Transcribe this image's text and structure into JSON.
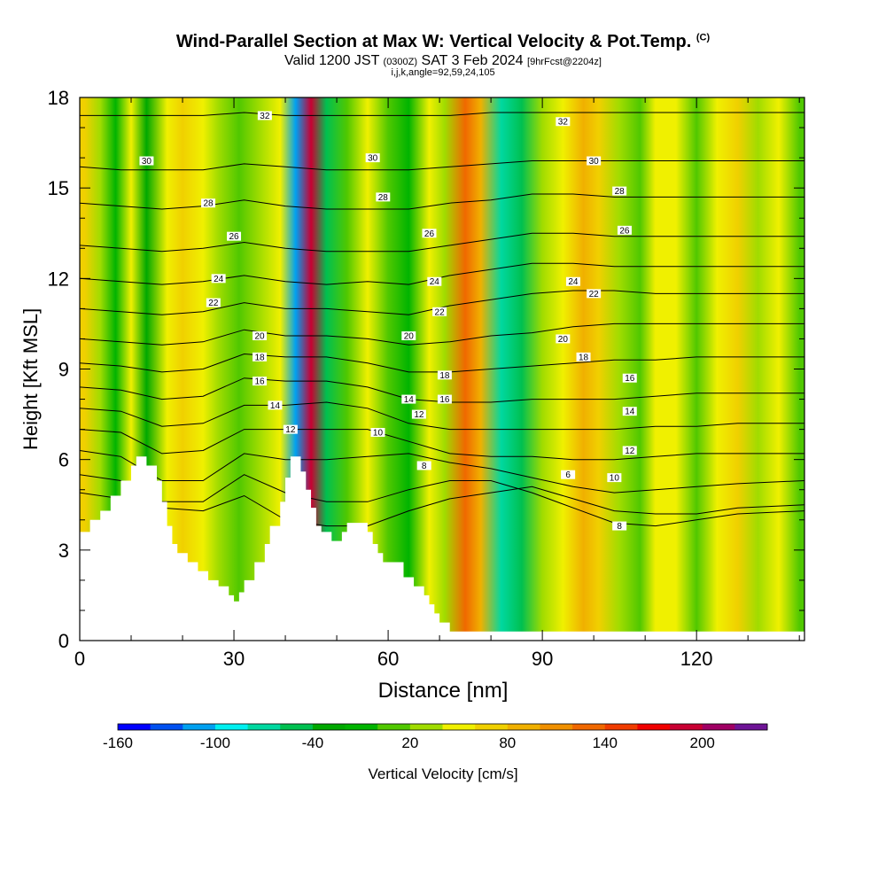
{
  "chart_data": {
    "type": "heatmap",
    "title": "Wind-Parallel Section at Max W: Vertical Velocity & Pot.Temp.",
    "title_mark": "(C)",
    "subtitle_main": "Valid 1200 JST",
    "subtitle_utc": "(0300Z)",
    "subtitle_date": "SAT 3 Feb 2024",
    "subtitle_fcst": "[9hrFcst@2204z]",
    "params": "i,j,k,angle=92,59,24,105",
    "xlabel": "Distance [nm]",
    "ylabel": "Height [Kft MSL]",
    "xlim": [
      0,
      141
    ],
    "ylim": [
      0,
      18
    ],
    "x_ticks": [
      "0",
      "30",
      "60",
      "90",
      "120"
    ],
    "y_ticks": [
      "0",
      "3",
      "6",
      "9",
      "12",
      "15",
      "18"
    ],
    "colorbar_label": "Vertical Velocity [cm/s]",
    "colorbar_ticks": [
      "-160",
      "-100",
      "-40",
      "20",
      "80",
      "140",
      "200"
    ],
    "colorbar_levels": [
      -160,
      -140,
      -120,
      -100,
      -80,
      -60,
      -40,
      -20,
      0,
      20,
      40,
      60,
      80,
      100,
      120,
      140,
      160,
      180,
      200,
      220
    ],
    "colorbar_colors": [
      "#0000ff",
      "#0050f0",
      "#00a0f0",
      "#00f0f0",
      "#00d8a0",
      "#00c050",
      "#00a800",
      "#00b400",
      "#50c800",
      "#a0dc00",
      "#f0f000",
      "#f0d000",
      "#f0b000",
      "#f09000",
      "#f06800",
      "#f03c00",
      "#f00000",
      "#c80032",
      "#a00064",
      "#6e1496"
    ],
    "vertical_velocity_bands": [
      {
        "x": 1,
        "w": 60
      },
      {
        "x": 4,
        "w": 20
      },
      {
        "x": 7,
        "w": -20
      },
      {
        "x": 10,
        "w": 40
      },
      {
        "x": 13,
        "w": -40
      },
      {
        "x": 17,
        "w": 50
      },
      {
        "x": 20,
        "w": 70
      },
      {
        "x": 24,
        "w": 50
      },
      {
        "x": 27,
        "w": 30
      },
      {
        "x": 31,
        "w": 10
      },
      {
        "x": 35,
        "w": 30
      },
      {
        "x": 39,
        "w": 40
      },
      {
        "x": 42,
        "w": -120
      },
      {
        "x": 45,
        "w": 180
      },
      {
        "x": 48,
        "w": -60
      },
      {
        "x": 52,
        "w": 10
      },
      {
        "x": 56,
        "w": 40
      },
      {
        "x": 60,
        "w": 10
      },
      {
        "x": 64,
        "w": -20
      },
      {
        "x": 68,
        "w": 50
      },
      {
        "x": 71,
        "w": 30
      },
      {
        "x": 75,
        "w": 130
      },
      {
        "x": 78,
        "w": 90
      },
      {
        "x": 82,
        "w": -80
      },
      {
        "x": 86,
        "w": -60
      },
      {
        "x": 90,
        "w": 20
      },
      {
        "x": 94,
        "w": 40
      },
      {
        "x": 98,
        "w": 80
      },
      {
        "x": 101,
        "w": 70
      },
      {
        "x": 105,
        "w": 30
      },
      {
        "x": 109,
        "w": 10
      },
      {
        "x": 112,
        "w": 50
      },
      {
        "x": 116,
        "w": 40
      },
      {
        "x": 120,
        "w": 0
      },
      {
        "x": 124,
        "w": 50
      },
      {
        "x": 128,
        "w": 60
      },
      {
        "x": 132,
        "w": 20
      },
      {
        "x": 136,
        "w": 40
      },
      {
        "x": 140,
        "w": 10
      }
    ],
    "terrain": [
      {
        "x": 0,
        "h": 3.6
      },
      {
        "x": 2,
        "h": 4.0
      },
      {
        "x": 4,
        "h": 4.3
      },
      {
        "x": 6,
        "h": 4.8
      },
      {
        "x": 8,
        "h": 5.3
      },
      {
        "x": 10,
        "h": 5.8
      },
      {
        "x": 11,
        "h": 6.1
      },
      {
        "x": 12,
        "h": 6.1
      },
      {
        "x": 13,
        "h": 5.8
      },
      {
        "x": 14,
        "h": 5.8
      },
      {
        "x": 15,
        "h": 5.3
      },
      {
        "x": 16,
        "h": 4.6
      },
      {
        "x": 17,
        "h": 3.8
      },
      {
        "x": 18,
        "h": 3.2
      },
      {
        "x": 19,
        "h": 2.9
      },
      {
        "x": 21,
        "h": 2.6
      },
      {
        "x": 23,
        "h": 2.3
      },
      {
        "x": 25,
        "h": 2.0
      },
      {
        "x": 27,
        "h": 1.8
      },
      {
        "x": 29,
        "h": 1.5
      },
      {
        "x": 30,
        "h": 1.3
      },
      {
        "x": 31,
        "h": 1.6
      },
      {
        "x": 32,
        "h": 2.0
      },
      {
        "x": 34,
        "h": 2.6
      },
      {
        "x": 36,
        "h": 3.2
      },
      {
        "x": 37,
        "h": 3.8
      },
      {
        "x": 39,
        "h": 4.6
      },
      {
        "x": 40,
        "h": 5.4
      },
      {
        "x": 41,
        "h": 6.1
      },
      {
        "x": 42,
        "h": 6.1
      },
      {
        "x": 43,
        "h": 5.6
      },
      {
        "x": 44,
        "h": 5.0
      },
      {
        "x": 45,
        "h": 4.4
      },
      {
        "x": 46,
        "h": 3.8
      },
      {
        "x": 47,
        "h": 3.6
      },
      {
        "x": 49,
        "h": 3.3
      },
      {
        "x": 51,
        "h": 3.6
      },
      {
        "x": 52,
        "h": 3.9
      },
      {
        "x": 55,
        "h": 3.9
      },
      {
        "x": 56,
        "h": 3.6
      },
      {
        "x": 57,
        "h": 3.2
      },
      {
        "x": 58,
        "h": 2.9
      },
      {
        "x": 59,
        "h": 2.6
      },
      {
        "x": 61,
        "h": 2.6
      },
      {
        "x": 63,
        "h": 2.1
      },
      {
        "x": 65,
        "h": 1.8
      },
      {
        "x": 67,
        "h": 1.5
      },
      {
        "x": 68,
        "h": 1.2
      },
      {
        "x": 69,
        "h": 0.9
      },
      {
        "x": 70,
        "h": 0.6
      },
      {
        "x": 72,
        "h": 0.3
      },
      {
        "x": 141,
        "h": 0.3
      }
    ],
    "isentropes": [
      {
        "label": "6",
        "y": [
          4.9,
          4.7,
          4.4,
          4.3,
          4.8,
          4.0,
          3.8,
          3.8,
          4.3,
          4.7,
          4.9,
          5.1,
          4.7,
          4.3,
          4.2,
          4.2,
          4.4,
          4.5
        ]
      },
      {
        "label": "8",
        "y": [
          5.5,
          5.3,
          4.6,
          4.6,
          5.5,
          4.9,
          4.6,
          4.6,
          5.0,
          5.3,
          5.3,
          4.9,
          4.4,
          3.9,
          3.8,
          4.0,
          4.2,
          4.3
        ]
      },
      {
        "label": "10",
        "y": [
          6.3,
          6.1,
          5.3,
          5.3,
          6.2,
          6.0,
          6.0,
          6.1,
          6.2,
          5.9,
          5.7,
          5.4,
          5.1,
          4.9,
          5.0,
          5.1,
          5.2,
          5.3
        ]
      },
      {
        "label": "12",
        "y": [
          7.0,
          6.9,
          6.2,
          6.3,
          7.0,
          7.0,
          7.0,
          7.0,
          6.6,
          6.2,
          6.1,
          6.1,
          6.0,
          6.0,
          6.1,
          6.2,
          6.2,
          6.2
        ]
      },
      {
        "label": "14",
        "y": [
          7.7,
          7.6,
          7.1,
          7.2,
          7.8,
          7.8,
          7.9,
          7.7,
          7.2,
          7.0,
          7.0,
          7.0,
          7.0,
          7.0,
          7.1,
          7.1,
          7.2,
          7.2
        ]
      },
      {
        "label": "16",
        "y": [
          8.4,
          8.3,
          8.0,
          8.1,
          8.7,
          8.6,
          8.6,
          8.4,
          8.0,
          7.9,
          7.9,
          8.0,
          8.0,
          8.0,
          8.1,
          8.2,
          8.2,
          8.2
        ]
      },
      {
        "label": "18",
        "y": [
          9.2,
          9.1,
          8.9,
          9.0,
          9.5,
          9.4,
          9.4,
          9.2,
          8.9,
          8.9,
          9.0,
          9.1,
          9.2,
          9.3,
          9.3,
          9.4,
          9.4,
          9.4
        ]
      },
      {
        "label": "20",
        "y": [
          10.0,
          9.9,
          9.8,
          9.9,
          10.3,
          10.1,
          10.1,
          10.0,
          9.8,
          9.9,
          10.1,
          10.2,
          10.4,
          10.5,
          10.5,
          10.5,
          10.5,
          10.5
        ]
      },
      {
        "label": "22",
        "y": [
          11.0,
          10.9,
          10.8,
          10.9,
          11.2,
          11.0,
          11.0,
          10.9,
          10.8,
          11.1,
          11.3,
          11.5,
          11.6,
          11.6,
          11.5,
          11.5,
          11.5,
          11.5
        ]
      },
      {
        "label": "24",
        "y": [
          12.0,
          11.9,
          11.8,
          11.9,
          12.1,
          11.9,
          11.8,
          11.9,
          11.8,
          12.1,
          12.3,
          12.5,
          12.5,
          12.4,
          12.4,
          12.4,
          12.4,
          12.4
        ]
      },
      {
        "label": "26",
        "y": [
          13.1,
          13.0,
          12.9,
          13.0,
          13.2,
          13.0,
          12.9,
          12.9,
          12.9,
          13.1,
          13.3,
          13.5,
          13.5,
          13.4,
          13.4,
          13.4,
          13.4,
          13.4
        ]
      },
      {
        "label": "28",
        "y": [
          14.5,
          14.4,
          14.3,
          14.4,
          14.6,
          14.4,
          14.3,
          14.3,
          14.3,
          14.5,
          14.6,
          14.8,
          14.8,
          14.7,
          14.7,
          14.7,
          14.7,
          14.7
        ]
      },
      {
        "label": "30",
        "y": [
          15.7,
          15.6,
          15.6,
          15.6,
          15.8,
          15.7,
          15.6,
          15.6,
          15.6,
          15.7,
          15.8,
          15.9,
          15.9,
          15.9,
          15.9,
          15.9,
          15.9,
          15.9
        ]
      },
      {
        "label": "32",
        "y": [
          17.4,
          17.4,
          17.4,
          17.4,
          17.5,
          17.4,
          17.4,
          17.4,
          17.4,
          17.4,
          17.5,
          17.5,
          17.5,
          17.5,
          17.5,
          17.5,
          17.5,
          17.5
        ]
      }
    ],
    "isentrope_x": [
      0,
      8,
      16,
      24,
      32,
      40,
      48,
      56,
      64,
      72,
      80,
      88,
      96,
      104,
      112,
      120,
      128,
      141
    ],
    "contour_labels": [
      {
        "text": "32",
        "x": 36,
        "y": 17.4
      },
      {
        "text": "32",
        "x": 94,
        "y": 17.2
      },
      {
        "text": "30",
        "x": 13,
        "y": 15.9
      },
      {
        "text": "30",
        "x": 57,
        "y": 16.0
      },
      {
        "text": "30",
        "x": 100,
        "y": 15.9
      },
      {
        "text": "28",
        "x": 25,
        "y": 14.5
      },
      {
        "text": "28",
        "x": 59,
        "y": 14.7
      },
      {
        "text": "28",
        "x": 105,
        "y": 14.9
      },
      {
        "text": "26",
        "x": 30,
        "y": 13.4
      },
      {
        "text": "26",
        "x": 68,
        "y": 13.5
      },
      {
        "text": "26",
        "x": 106,
        "y": 13.6
      },
      {
        "text": "24",
        "x": 27,
        "y": 12.0
      },
      {
        "text": "24",
        "x": 69,
        "y": 11.9
      },
      {
        "text": "24",
        "x": 96,
        "y": 11.9
      },
      {
        "text": "22",
        "x": 26,
        "y": 11.2
      },
      {
        "text": "22",
        "x": 70,
        "y": 10.9
      },
      {
        "text": "22",
        "x": 100,
        "y": 11.5
      },
      {
        "text": "20",
        "x": 35,
        "y": 10.1
      },
      {
        "text": "20",
        "x": 64,
        "y": 10.1
      },
      {
        "text": "20",
        "x": 94,
        "y": 10.0
      },
      {
        "text": "18",
        "x": 35,
        "y": 9.4
      },
      {
        "text": "18",
        "x": 71,
        "y": 8.8
      },
      {
        "text": "18",
        "x": 98,
        "y": 9.4
      },
      {
        "text": "16",
        "x": 35,
        "y": 8.6
      },
      {
        "text": "16",
        "x": 71,
        "y": 8.0
      },
      {
        "text": "16",
        "x": 107,
        "y": 8.7
      },
      {
        "text": "14",
        "x": 38,
        "y": 7.8
      },
      {
        "text": "14",
        "x": 64,
        "y": 8.0
      },
      {
        "text": "14",
        "x": 107,
        "y": 7.6
      },
      {
        "text": "12",
        "x": 41,
        "y": 7.0
      },
      {
        "text": "12",
        "x": 66,
        "y": 7.5
      },
      {
        "text": "12",
        "x": 107,
        "y": 6.3
      },
      {
        "text": "10",
        "x": 58,
        "y": 6.9
      },
      {
        "text": "10",
        "x": 104,
        "y": 5.4
      },
      {
        "text": "8",
        "x": 67,
        "y": 5.8
      },
      {
        "text": "8",
        "x": 105,
        "y": 3.8
      },
      {
        "text": "6",
        "x": 95,
        "y": 5.5
      }
    ]
  }
}
